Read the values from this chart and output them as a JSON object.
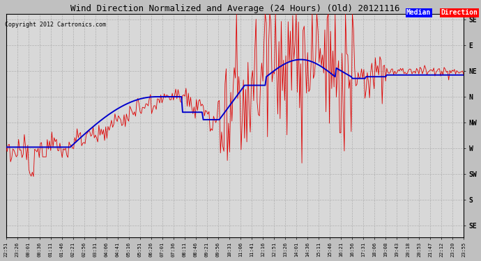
{
  "title": "Wind Direction Normalized and Average (24 Hours) (Old) 20121116",
  "copyright": "Copyright 2012 Cartronics.com",
  "ytick_labels": [
    "SE",
    "S",
    "SW",
    "W",
    "NW",
    "N",
    "NE",
    "E",
    "SE"
  ],
  "ytick_values": [
    360,
    315,
    270,
    225,
    180,
    135,
    90,
    45,
    0
  ],
  "ylim": [
    -10,
    380
  ],
  "fig_bg": "#c0c0c0",
  "plot_bg": "#d8d8d8",
  "grid_color": "#b0b0b0",
  "red_color": "#dd0000",
  "blue_color": "#0000cc",
  "xtick_labels": [
    "22:51",
    "23:26",
    "00:01",
    "00:36",
    "01:11",
    "01:46",
    "02:21",
    "02:56",
    "03:31",
    "04:06",
    "04:41",
    "05:16",
    "05:51",
    "06:26",
    "07:01",
    "07:36",
    "08:11",
    "08:46",
    "09:21",
    "09:56",
    "10:31",
    "11:06",
    "11:41",
    "12:16",
    "12:51",
    "13:26",
    "14:01",
    "14:36",
    "15:11",
    "15:46",
    "16:21",
    "16:56",
    "17:31",
    "18:06",
    "19:08",
    "19:43",
    "20:18",
    "20:53",
    "21:47",
    "22:12",
    "23:20",
    "23:55"
  ],
  "title_fontsize": 9,
  "copyright_fontsize": 6,
  "ytick_fontsize": 7,
  "xtick_fontsize": 5
}
